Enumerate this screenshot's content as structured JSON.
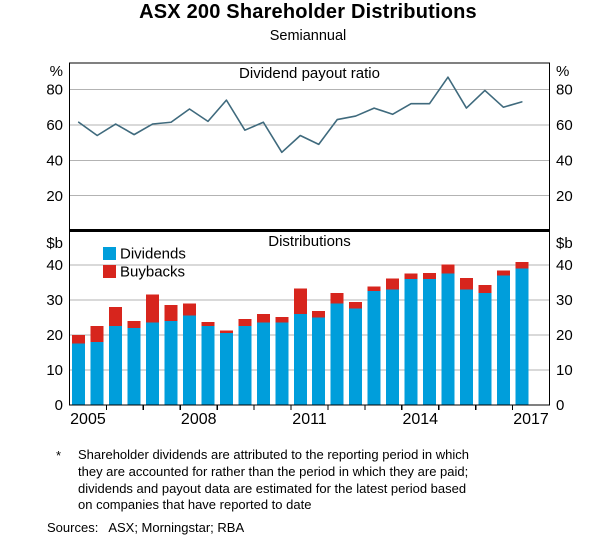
{
  "title": "ASX 200 Shareholder Distributions",
  "subtitle": "Semiannual",
  "x_axis": {
    "tick_years": [
      "2005",
      "2008",
      "2011",
      "2014",
      "2017"
    ],
    "periods": [
      "2005:H1",
      "2005:H2",
      "2006:H1",
      "2006:H2",
      "2007:H1",
      "2007:H2",
      "2008:H1",
      "2008:H2",
      "2009:H1",
      "2009:H2",
      "2010:H1",
      "2010:H2",
      "2011:H1",
      "2011:H2",
      "2012:H1",
      "2012:H2",
      "2013:H1",
      "2013:H2",
      "2014:H1",
      "2014:H2",
      "2015:H1",
      "2015:H2",
      "2016:H1",
      "2016:H2",
      "2017:H1"
    ]
  },
  "chart_data": [
    {
      "type": "line",
      "panel": "top",
      "title": "Dividend payout ratio",
      "unit_label": "%",
      "ylim": [
        0,
        95
      ],
      "yticks": [
        20,
        40,
        60,
        80
      ],
      "grid": true,
      "series": [
        {
          "name": "Dividend payout ratio",
          "color": "#3f6a7d",
          "values": [
            61.5,
            54,
            60.5,
            54.5,
            60.5,
            61.5,
            69,
            62,
            74,
            57,
            61.5,
            44.5,
            54,
            49,
            63,
            65,
            69.5,
            66,
            72,
            72,
            87,
            69.5,
            79.5,
            70,
            73
          ]
        }
      ]
    },
    {
      "type": "stacked-bar",
      "panel": "bottom",
      "title": "Distributions",
      "unit_label": "$b",
      "ylim": [
        0,
        49.7
      ],
      "yticks": [
        0,
        10,
        20,
        30,
        40
      ],
      "grid": true,
      "legend_position": "top-left",
      "series": [
        {
          "name": "Dividends",
          "color": "#009edb",
          "values": [
            17.5,
            18,
            22.5,
            22,
            23.5,
            24,
            25.5,
            22.5,
            20.5,
            22.5,
            23.5,
            23.5,
            26,
            25,
            29,
            27.5,
            32.5,
            33,
            36,
            36,
            37.5,
            33,
            32,
            37,
            39
          ]
        },
        {
          "name": "Buybacks",
          "color": "#d7251d",
          "values": [
            2.5,
            4.5,
            5.5,
            2,
            8,
            4.5,
            3.5,
            1.2,
            0.8,
            2,
            2.5,
            1.6,
            7.3,
            1.8,
            3,
            1.9,
            1.3,
            3.2,
            1.6,
            1.7,
            2.7,
            3.3,
            2.3,
            1.4,
            1.9
          ]
        }
      ]
    }
  ],
  "style": {
    "gridline_color": "#b3b3b3",
    "border_color": "#000000",
    "line_color": "#3f6a7d",
    "dividends_color": "#009edb",
    "buybacks_color": "#d7251d"
  },
  "footnote": {
    "marker": "*",
    "lines": [
      "Shareholder dividends are attributed to the reporting period in which",
      "they are accounted for rather than the period in which they are paid;",
      "dividends and payout data are estimated for the latest period based",
      "on companies that have reported to date"
    ],
    "sources_label": "Sources:",
    "sources": "ASX; Morningstar; RBA"
  }
}
